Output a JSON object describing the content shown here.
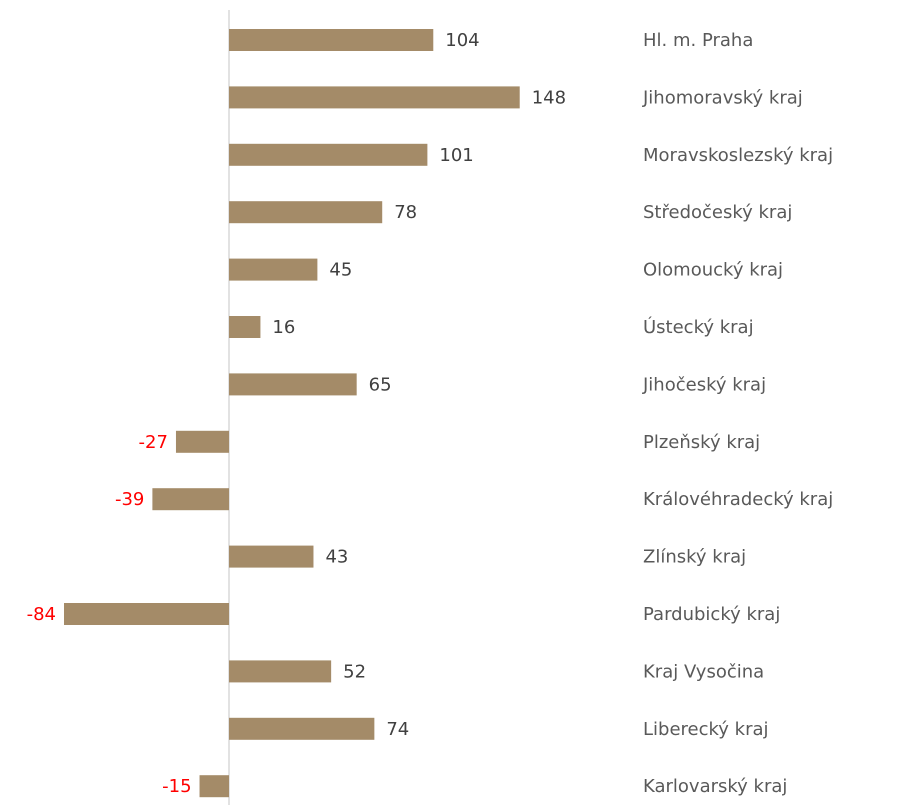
{
  "chart_data": {
    "type": "bar",
    "orientation": "horizontal",
    "categories": [
      "Hl. m. Praha",
      "Jihomoravský kraj",
      "Moravskoslezský kraj",
      "Středočeský kraj",
      "Olomoucký kraj",
      "Ústecký kraj",
      "Jihočeský kraj",
      "Plzeňský kraj",
      "Královéhradecký kraj",
      "Zlínský kraj",
      "Pardubický kraj",
      "Kraj Vysočina",
      "Liberecký kraj",
      "Karlovarský kraj"
    ],
    "values": [
      104,
      148,
      101,
      78,
      45,
      16,
      65,
      -27,
      -39,
      43,
      -84,
      52,
      74,
      -15
    ],
    "color": "#a48b68",
    "label_color": "#404040",
    "negative_label_color": "#ff0000",
    "category_color": "#595959"
  }
}
